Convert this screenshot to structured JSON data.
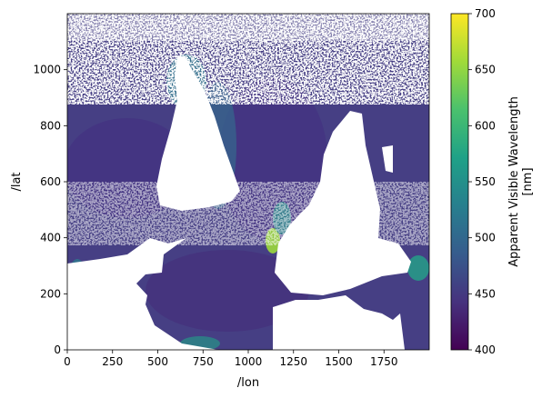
{
  "chart_data": {
    "type": "heatmap",
    "title": "",
    "xlabel": "/lon",
    "ylabel": "/lat",
    "xlim": [
      0,
      2000
    ],
    "ylim": [
      0,
      1200
    ],
    "xticks": [
      0,
      250,
      500,
      750,
      1000,
      1250,
      1500,
      1750
    ],
    "xtick_labels": [
      "0",
      "250",
      "500",
      "750",
      "1000",
      "1250",
      "1500",
      "1750"
    ],
    "yticks": [
      0,
      200,
      400,
      600,
      800,
      1000
    ],
    "ytick_labels": [
      "0",
      "200",
      "400",
      "600",
      "800",
      "1000"
    ],
    "colorbar": {
      "label_lines": [
        "Apparent Visible Wavelength",
        "[nm]"
      ],
      "range": [
        400,
        700
      ],
      "ticks": [
        400,
        450,
        500,
        550,
        600,
        650,
        700
      ],
      "tick_labels": [
        "400",
        "450",
        "500",
        "550",
        "600",
        "650",
        "700"
      ],
      "colormap": "viridis",
      "colors": [
        "#440154",
        "#46327e",
        "#365c8d",
        "#277f8e",
        "#1fa187",
        "#4ac16d",
        "#a0da39",
        "#fde725"
      ]
    },
    "field_description": "ocean apparent visible wavelength map; mostly 440-470 nm with higher values (500-560 nm) along coasts",
    "missing_color": "#ffffff"
  }
}
